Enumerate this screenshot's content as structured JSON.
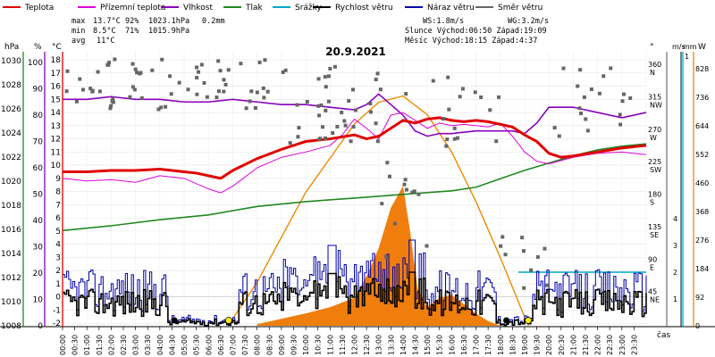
{
  "chart_data": {
    "type": "line",
    "title": "20.9.2021",
    "legend": [
      {
        "label": "Teplota",
        "color": "#e00000"
      },
      {
        "label": "Přízemní teplota",
        "color": "#dd00dd"
      },
      {
        "label": "Vlhkost",
        "color": "#8800bb"
      },
      {
        "label": "Tlak",
        "color": "#228822"
      },
      {
        "label": "Srážky",
        "color": "#00aacc"
      },
      {
        "label": "Rychlost větru",
        "color": "#000000"
      },
      {
        "label": "Náraz větru",
        "color": "#0000aa"
      },
      {
        "label": "Směr větru",
        "color": "#666666"
      }
    ],
    "stats": {
      "max_label": "max",
      "max_values": [
        "13.7°C",
        "92%",
        "1023.1hPa",
        "0.2mm"
      ],
      "min_label": "min",
      "min_values": [
        "8.5°C",
        "71%",
        "1015.9hPa"
      ],
      "avg_label": "avg",
      "avg_values": [
        "11°C"
      ],
      "ws": "WS:1.8m/s",
      "wg": "WG:3.2m/s",
      "sun": "Slunce Východ:06:50  Západ:19:09",
      "moon": "Měsíc  Východ:18:15  Západ:4:37"
    },
    "axes": {
      "hpa_label": "hPa",
      "pct_label": "%",
      "temp_label": "°C",
      "deg_label": "°",
      "ms_label": "m/s",
      "mm_label": "mm",
      "w_label": "W",
      "hpa_ticks": [
        "1030",
        "1028",
        "1026",
        "1024",
        "1022",
        "1020",
        "1018",
        "1016",
        "1014",
        "1012",
        "1010",
        "1008"
      ],
      "pct_ticks": [
        "100",
        "90",
        "80",
        "70",
        "60",
        "50",
        "40",
        "30",
        "20",
        "10",
        "0"
      ],
      "temp_ticks": [
        "18",
        "17",
        "16",
        "15",
        "14",
        "13",
        "12",
        "11",
        "10",
        "9",
        "8",
        "7",
        "6",
        "5",
        "4",
        "3",
        "2",
        "1",
        "0",
        "-1",
        "-2"
      ],
      "dir_ticks": [
        {
          "deg": 360,
          "label": "N"
        },
        {
          "deg": 315,
          "label": "NW"
        },
        {
          "deg": 270,
          "label": "W"
        },
        {
          "deg": 225,
          "label": "SW"
        },
        {
          "deg": 180,
          "label": "S"
        },
        {
          "deg": 135,
          "label": "SE"
        },
        {
          "deg": 90,
          "label": "E"
        },
        {
          "deg": 45,
          "label": "NE"
        }
      ],
      "ms_ticks": [
        "4",
        "3",
        "2",
        "1"
      ],
      "mm_top": "1",
      "w_ticks": [
        "828",
        "736",
        "644",
        "552",
        "460",
        "368",
        "276",
        "184",
        "92",
        "0"
      ],
      "x_label": "čas",
      "x_ticks": [
        "00:00",
        "00:30",
        "01:00",
        "01:30",
        "02:00",
        "02:30",
        "03:00",
        "03:30",
        "04:00",
        "04:30",
        "05:00",
        "05:30",
        "06:00",
        "06:30",
        "07:00",
        "07:30",
        "08:00",
        "08:30",
        "09:00",
        "09:30",
        "10:00",
        "10:30",
        "11:00",
        "11:30",
        "12:00",
        "12:30",
        "13:00",
        "13:30",
        "14:00",
        "14:30",
        "15:00",
        "15:30",
        "16:00",
        "16:30",
        "17:00",
        "17:30",
        "18:00",
        "18:30",
        "19:00",
        "19:30",
        "20:00",
        "20:30",
        "21:00",
        "21:30",
        "22:00",
        "22:30",
        "23:00",
        "23:30"
      ]
    },
    "series": {
      "temperature_c": {
        "t": [
          0,
          1,
          2,
          3,
          4,
          4.5,
          5,
          5.5,
          6,
          6.5,
          7,
          8,
          9,
          10,
          11,
          12,
          12.5,
          13,
          13.5,
          14,
          14.5,
          15,
          15.5,
          16,
          16.5,
          17,
          17.5,
          18,
          18.5,
          19,
          19.5,
          20,
          20.5,
          21,
          22,
          23,
          24
        ],
        "v": [
          9.5,
          9.5,
          9.6,
          9.6,
          9.7,
          9.6,
          9.5,
          9.4,
          9.2,
          9.0,
          9.6,
          10.5,
          11.2,
          11.8,
          12.0,
          12.3,
          12.0,
          12.2,
          12.8,
          13.4,
          13.2,
          13.5,
          13.6,
          13.4,
          13.3,
          13.4,
          13.3,
          13.1,
          12.9,
          12.3,
          11.8,
          10.9,
          10.6,
          10.7,
          11.0,
          11.3,
          11.5
        ]
      },
      "ground_temp_c": {
        "t": [
          0,
          1,
          2,
          3,
          4,
          5,
          6,
          6.5,
          7,
          8,
          9,
          10,
          11,
          11.5,
          12,
          12.5,
          13,
          13.5,
          14,
          14.5,
          15,
          15.5,
          16,
          16.5,
          17,
          17.5,
          18,
          18.5,
          19,
          19.5,
          20,
          21,
          22,
          23,
          24
        ],
        "v": [
          9.0,
          8.8,
          8.9,
          8.7,
          9.2,
          9.0,
          8.2,
          7.9,
          8.4,
          9.8,
          10.6,
          11.0,
          11.5,
          12.3,
          13.5,
          12.8,
          12.0,
          13.8,
          14.0,
          13.4,
          12.8,
          13.2,
          13.0,
          13.1,
          13.0,
          12.9,
          13.2,
          12.2,
          11.0,
          10.3,
          10.1,
          10.6,
          10.9,
          11.0,
          10.8
        ]
      },
      "humidity_pct": {
        "t": [
          0,
          1,
          2,
          3,
          4,
          5,
          6,
          7,
          8,
          9,
          10,
          11,
          12,
          12.5,
          13,
          13.5,
          14,
          14.5,
          15,
          15.5,
          16,
          17,
          18,
          18.5,
          19,
          19.5,
          20,
          21,
          22,
          23,
          24
        ],
        "v": [
          86,
          86,
          87,
          86,
          86,
          85,
          85,
          86,
          85,
          84,
          84,
          83,
          82,
          84,
          88,
          84,
          80,
          74,
          72,
          73,
          73,
          74,
          74,
          74,
          73,
          77,
          83,
          83,
          81,
          79,
          81
        ]
      },
      "pressure_hpa": {
        "t": [
          0,
          2,
          4,
          6,
          8,
          10,
          12,
          14,
          16,
          17,
          18,
          19,
          20,
          21,
          22,
          23,
          24
        ],
        "v": [
          1015.9,
          1016.3,
          1016.8,
          1017.2,
          1017.9,
          1018.3,
          1018.6,
          1018.9,
          1019.2,
          1019.5,
          1020.2,
          1020.9,
          1021.5,
          1022.1,
          1022.6,
          1022.9,
          1023.1
        ]
      },
      "solar_w": {
        "t": [
          6.8,
          8,
          10,
          12,
          13,
          14,
          15,
          16,
          17,
          18,
          19.15
        ],
        "v": [
          0,
          140,
          430,
          650,
          720,
          740,
          680,
          560,
          400,
          220,
          0
        ]
      },
      "solar_measured_w": {
        "t": [
          8,
          10,
          11,
          12,
          12.5,
          13,
          13.5,
          14,
          14.3,
          14.6,
          15,
          15.5,
          16,
          16.5,
          17,
          17.5,
          18
        ],
        "v": [
          5,
          40,
          60,
          90,
          160,
          250,
          380,
          450,
          300,
          120,
          60,
          90,
          100,
          70,
          40,
          15,
          0
        ]
      },
      "precip_mm": {
        "t": [
          0,
          24
        ],
        "v": [
          0,
          0
        ]
      }
    }
  }
}
